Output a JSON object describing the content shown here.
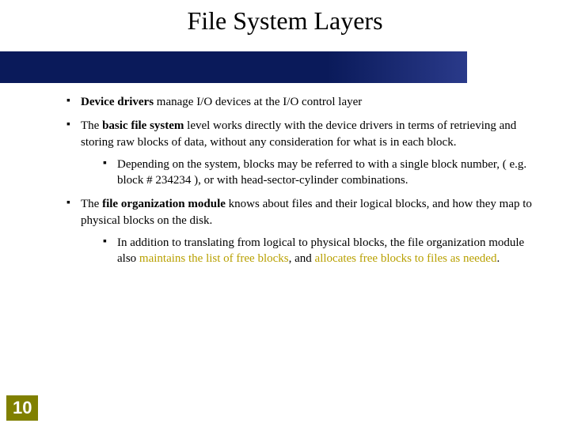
{
  "slide": {
    "title": "File System Layers",
    "page_number": "10",
    "banner_color_start": "#0a1a5a",
    "banner_color_end": "#2a3a8a",
    "pagenum_bg": "#808000",
    "pagenum_fg": "#ffffff",
    "highlight_color": "#b8a000",
    "text_color": "#000000",
    "bullets": {
      "b1": {
        "bold": "Device drivers",
        "rest": " manage I/O devices at the I/O control layer"
      },
      "b2": {
        "pre": "The ",
        "bold": "basic file system",
        "post": " level works directly with the device drivers in terms of retrieving and storing raw blocks of data, without any consideration for what is in each block."
      },
      "b2a": "Depending on the system, blocks may be referred to with a single block number, ( e.g. block # 234234 ), or with head-sector-cylinder combinations.",
      "b3": {
        "pre": "The ",
        "bold": "file organization module",
        "post": " knows about files and their logical blocks, and how they map to physical blocks on the disk."
      },
      "b3a": {
        "pre": "In addition to translating from logical to physical blocks, the file organization module also ",
        "em1": "maintains the list of free blocks",
        "mid": ", and ",
        "em2": "allocates free blocks to files as needed",
        "post": "."
      }
    }
  }
}
